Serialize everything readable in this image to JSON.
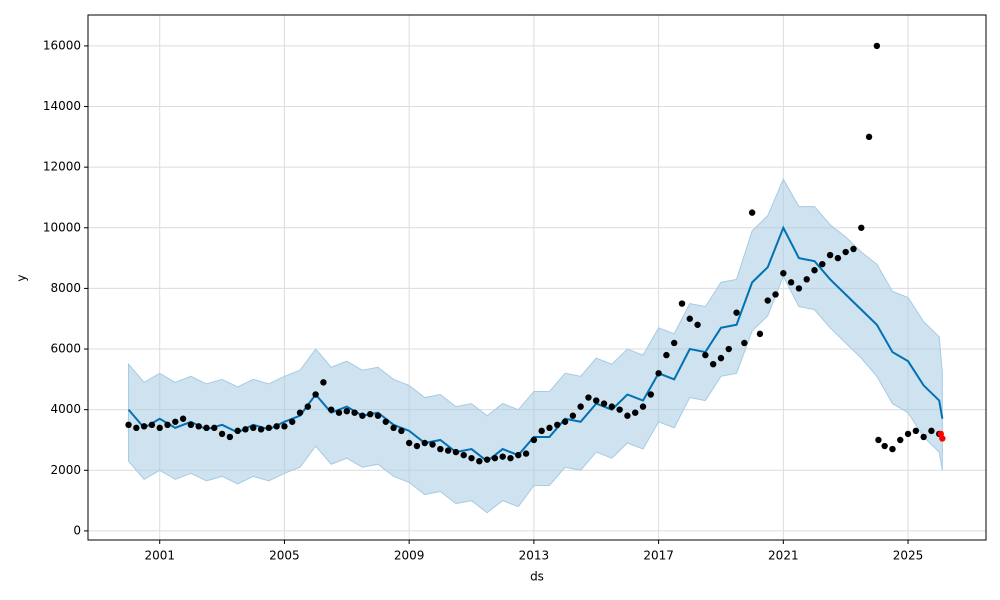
{
  "chart_data": {
    "type": "forecast",
    "xlabel": "ds",
    "ylabel": "y",
    "xlim": [
      1998.7,
      2027.5
    ],
    "ylim": [
      -300,
      17020
    ],
    "xticks": [
      2001,
      2005,
      2009,
      2013,
      2017,
      2021,
      2025
    ],
    "yticks": [
      0,
      2000,
      4000,
      6000,
      8000,
      10000,
      12000,
      14000,
      16000
    ],
    "grid": true,
    "series": [
      {
        "type": "band",
        "color": "#a6cbe3",
        "x": [
          2000,
          2000.5,
          2001,
          2001.5,
          2002,
          2002.5,
          2003,
          2003.5,
          2004,
          2004.5,
          2005,
          2005.5,
          2006,
          2006.5,
          2007,
          2007.5,
          2008,
          2008.5,
          2009,
          2009.5,
          2010,
          2010.5,
          2011,
          2011.5,
          2012,
          2012.5,
          2013,
          2013.5,
          2014,
          2014.5,
          2015,
          2015.5,
          2016,
          2016.5,
          2017,
          2017.5,
          2018,
          2018.5,
          2019,
          2019.5,
          2020,
          2020.5,
          2021,
          2021.5,
          2022,
          2022.5,
          2023,
          2023.5,
          2024,
          2024.5,
          2025,
          2025.5,
          2026,
          2026.1
        ],
        "upper": [
          5500,
          4900,
          5200,
          4900,
          5100,
          4850,
          5000,
          4750,
          5000,
          4850,
          5100,
          5300,
          6000,
          5400,
          5600,
          5300,
          5400,
          5000,
          4800,
          4400,
          4500,
          4100,
          4200,
          3800,
          4200,
          4000,
          4600,
          4600,
          5200,
          5100,
          5700,
          5500,
          6000,
          5800,
          6700,
          6500,
          7500,
          7400,
          8200,
          8300,
          9900,
          10400,
          11600,
          10700,
          10700,
          10100,
          9700,
          9200,
          8800,
          7900,
          7700,
          6900,
          6400,
          5200
        ],
        "lower": [
          2300,
          1700,
          2000,
          1700,
          1900,
          1650,
          1800,
          1550,
          1800,
          1650,
          1900,
          2100,
          2800,
          2200,
          2400,
          2100,
          2200,
          1800,
          1600,
          1200,
          1300,
          900,
          1000,
          600,
          1000,
          800,
          1500,
          1500,
          2100,
          2000,
          2600,
          2400,
          2900,
          2700,
          3600,
          3400,
          4400,
          4300,
          5100,
          5200,
          6600,
          7100,
          8400,
          7400,
          7300,
          6700,
          6200,
          5700,
          5100,
          4200,
          3900,
          3100,
          2600,
          2000
        ]
      },
      {
        "type": "line",
        "color": "#0072b2",
        "x": [
          2000,
          2000.5,
          2001,
          2001.5,
          2002,
          2002.5,
          2003,
          2003.5,
          2004,
          2004.5,
          2005,
          2005.5,
          2006,
          2006.5,
          2007,
          2007.5,
          2008,
          2008.5,
          2009,
          2009.5,
          2010,
          2010.5,
          2011,
          2011.5,
          2012,
          2012.5,
          2013,
          2013.5,
          2014,
          2014.5,
          2015,
          2015.5,
          2016,
          2016.5,
          2017,
          2017.5,
          2018,
          2018.5,
          2019,
          2019.5,
          2020,
          2020.5,
          2021,
          2021.5,
          2022,
          2022.5,
          2023,
          2023.5,
          2024,
          2024.5,
          2025,
          2025.5,
          2026,
          2026.1
        ],
        "values": [
          4000,
          3400,
          3700,
          3400,
          3600,
          3350,
          3500,
          3250,
          3500,
          3350,
          3600,
          3800,
          4500,
          3900,
          4100,
          3800,
          3900,
          3500,
          3300,
          2900,
          3000,
          2600,
          2700,
          2300,
          2700,
          2500,
          3100,
          3100,
          3700,
          3600,
          4200,
          4000,
          4500,
          4300,
          5200,
          5000,
          6000,
          5900,
          6700,
          6800,
          8200,
          8700,
          10000,
          9000,
          8900,
          8300,
          7800,
          7300,
          6800,
          5900,
          5600,
          4800,
          4300,
          3700
        ]
      },
      {
        "type": "scatter",
        "color": "#000000",
        "x": [
          2000,
          2000.25,
          2000.5,
          2000.75,
          2001,
          2001.25,
          2001.5,
          2001.75,
          2002,
          2002.25,
          2002.5,
          2002.75,
          2003,
          2003.25,
          2003.5,
          2003.75,
          2004,
          2004.25,
          2004.5,
          2004.75,
          2005,
          2005.25,
          2005.5,
          2005.75,
          2006,
          2006.25,
          2006.5,
          2006.75,
          2007,
          2007.25,
          2007.5,
          2007.75,
          2008,
          2008.25,
          2008.5,
          2008.75,
          2009,
          2009.25,
          2009.5,
          2009.75,
          2010,
          2010.25,
          2010.5,
          2010.75,
          2011,
          2011.25,
          2011.5,
          2011.75,
          2012,
          2012.25,
          2012.5,
          2012.75,
          2013,
          2013.25,
          2013.5,
          2013.75,
          2014,
          2014.25,
          2014.5,
          2014.75,
          2015,
          2015.25,
          2015.5,
          2015.75,
          2016,
          2016.25,
          2016.5,
          2016.75,
          2017,
          2017.25,
          2017.5,
          2017.75,
          2018,
          2018.25,
          2018.5,
          2018.75,
          2019,
          2019.25,
          2019.5,
          2019.75,
          2020,
          2020.25,
          2020.5,
          2020.75,
          2021,
          2021.25,
          2021.5,
          2021.75,
          2022,
          2022.25,
          2022.5,
          2022.75,
          2023,
          2023.25,
          2023.5,
          2023.75,
          2024,
          2024.05,
          2024.25,
          2024.5,
          2024.75,
          2025,
          2025.25,
          2025.5,
          2025.75,
          2026
        ],
        "values": [
          3500,
          3400,
          3450,
          3500,
          3400,
          3500,
          3600,
          3700,
          3500,
          3450,
          3400,
          3400,
          3200,
          3100,
          3300,
          3350,
          3400,
          3350,
          3400,
          3450,
          3450,
          3600,
          3900,
          4100,
          4500,
          4900,
          4000,
          3900,
          3950,
          3900,
          3800,
          3850,
          3800,
          3600,
          3400,
          3300,
          2900,
          2800,
          2900,
          2850,
          2700,
          2650,
          2600,
          2500,
          2400,
          2300,
          2350,
          2400,
          2450,
          2400,
          2500,
          2550,
          3000,
          3300,
          3400,
          3500,
          3600,
          3800,
          4100,
          4400,
          4300,
          4200,
          4100,
          4000,
          3800,
          3900,
          4100,
          4500,
          5200,
          5800,
          6200,
          7500,
          7000,
          6800,
          5800,
          5500,
          5700,
          6000,
          7200,
          6200,
          10500,
          6500,
          7600,
          7800,
          8500,
          8200,
          8000,
          8300,
          8600,
          8800,
          9100,
          9000,
          9200,
          9300,
          10000,
          13000,
          16000,
          3000,
          2800,
          2700,
          3000,
          3200,
          3300,
          3100,
          3300,
          3200
        ]
      },
      {
        "type": "scatter",
        "color": "#ff0000",
        "x": [
          2026.05,
          2026.1
        ],
        "values": [
          3200,
          3050
        ]
      }
    ]
  }
}
